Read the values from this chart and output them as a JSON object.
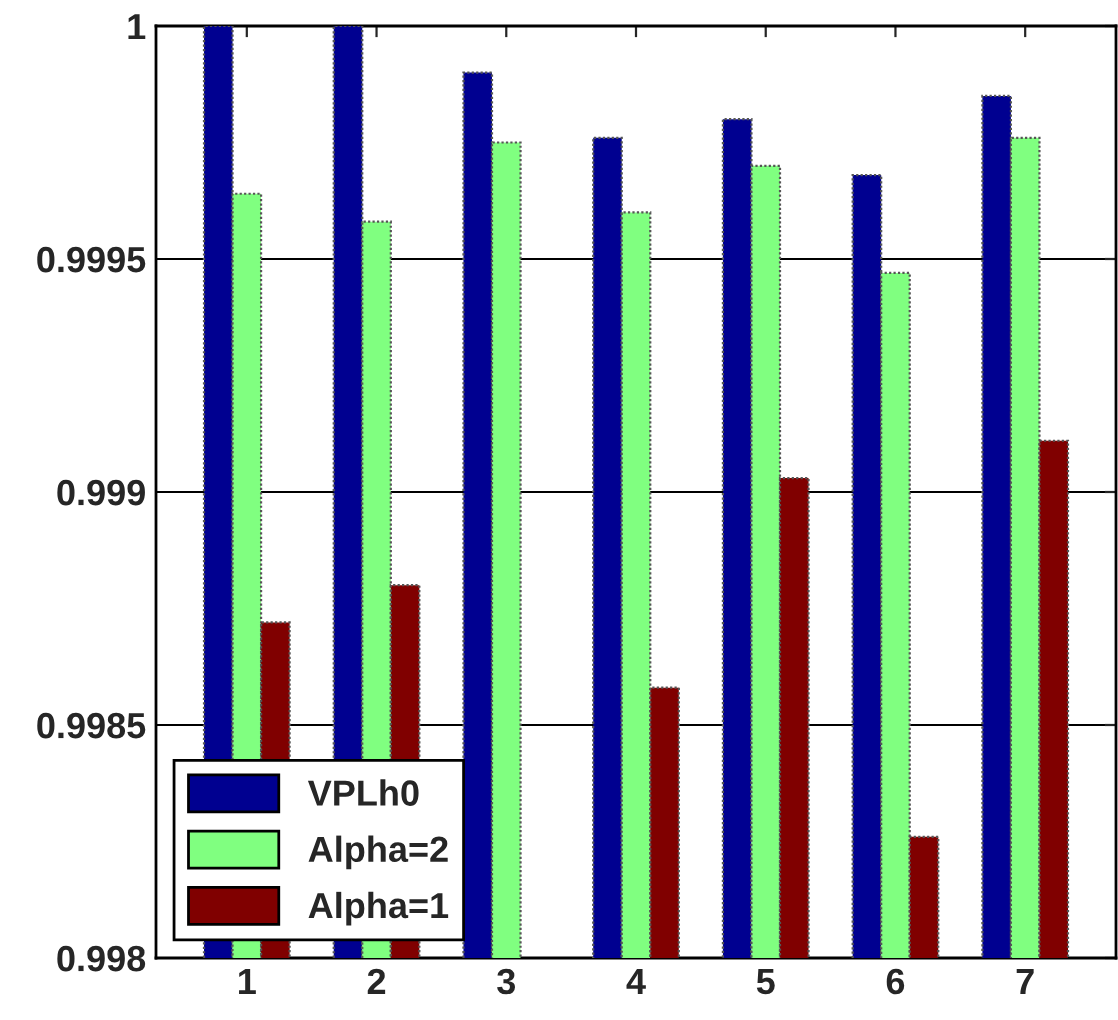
{
  "chart_data": {
    "type": "bar",
    "categories": [
      "1",
      "2",
      "3",
      "4",
      "5",
      "6",
      "7"
    ],
    "series": [
      {
        "name": "VPLh0",
        "color": "#000090",
        "values": [
          1.0,
          1.0,
          0.9999,
          0.99976,
          0.9998,
          0.99968,
          0.99985
        ]
      },
      {
        "name": "Alpha=2",
        "color": "#80ff80",
        "values": [
          0.99964,
          0.99958,
          0.99975,
          0.9996,
          0.9997,
          0.99947,
          0.99976
        ]
      },
      {
        "name": "Alpha=1",
        "color": "#800000",
        "values": [
          0.99872,
          0.9988,
          null,
          0.99858,
          0.99903,
          0.99826,
          0.99911
        ]
      }
    ],
    "ylim": [
      0.998,
      1
    ],
    "yticks": [
      0.998,
      0.9985,
      0.999,
      0.9995,
      1
    ],
    "grid": "y",
    "legend": "bottom left"
  }
}
